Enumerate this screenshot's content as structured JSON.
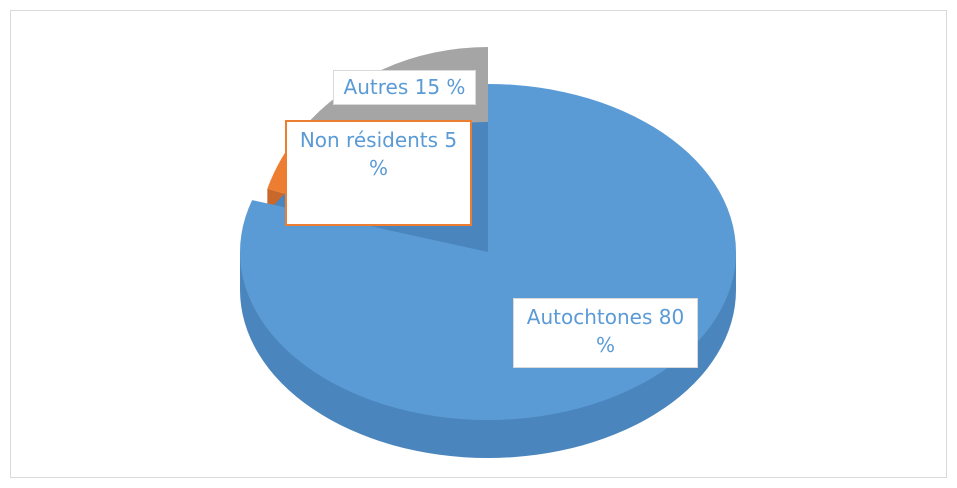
{
  "chart_data": {
    "type": "pie",
    "categories": [
      "Autochtones",
      "Non résidents",
      "Autres"
    ],
    "values": [
      80,
      5,
      15
    ],
    "value_labels": [
      "80 %",
      "5 %",
      "15 %"
    ],
    "colors": [
      "#5b9bd5",
      "#ed7d31",
      "#a5a5a5"
    ]
  }
}
